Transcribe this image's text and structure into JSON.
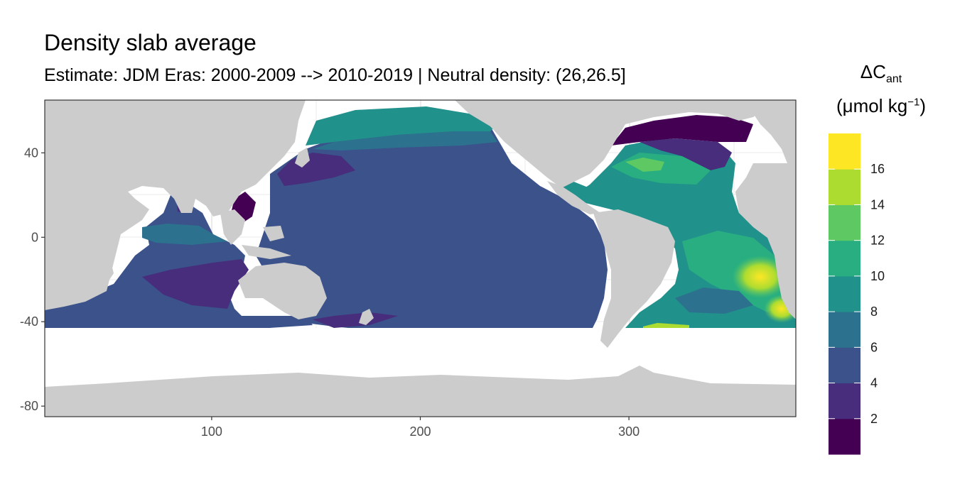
{
  "title": "Density slab average",
  "subtitle": "Estimate: JDM Eras: 2000-2009 --> 2010-2019 | Neutral density: (26,26.5]",
  "legend": {
    "title_symbol": "ΔC",
    "title_subscript": "ant",
    "unit_prefix": "(μmol kg",
    "unit_superscript": "−1",
    "unit_suffix": ")",
    "bins": [
      {
        "label": "2",
        "color": "#440154"
      },
      {
        "label": "4",
        "color": "#472d7b"
      },
      {
        "label": "6",
        "color": "#3b528b"
      },
      {
        "label": "8",
        "color": "#2c728e"
      },
      {
        "label": "10",
        "color": "#21918c"
      },
      {
        "label": "12",
        "color": "#28ae80"
      },
      {
        "label": "14",
        "color": "#5ec962"
      },
      {
        "label": "16",
        "color": "#addc30"
      },
      {
        "label": "",
        "color": "#fde725"
      }
    ]
  },
  "axes": {
    "x_ticks": [
      100,
      200,
      300
    ],
    "y_ticks": [
      40,
      0,
      -40,
      -80
    ],
    "x_range": [
      20,
      380
    ],
    "y_range": [
      -85,
      65
    ]
  },
  "colors": {
    "land": "#cccccc",
    "no_data": "#ffffff",
    "grid": "#ebebeb"
  }
}
